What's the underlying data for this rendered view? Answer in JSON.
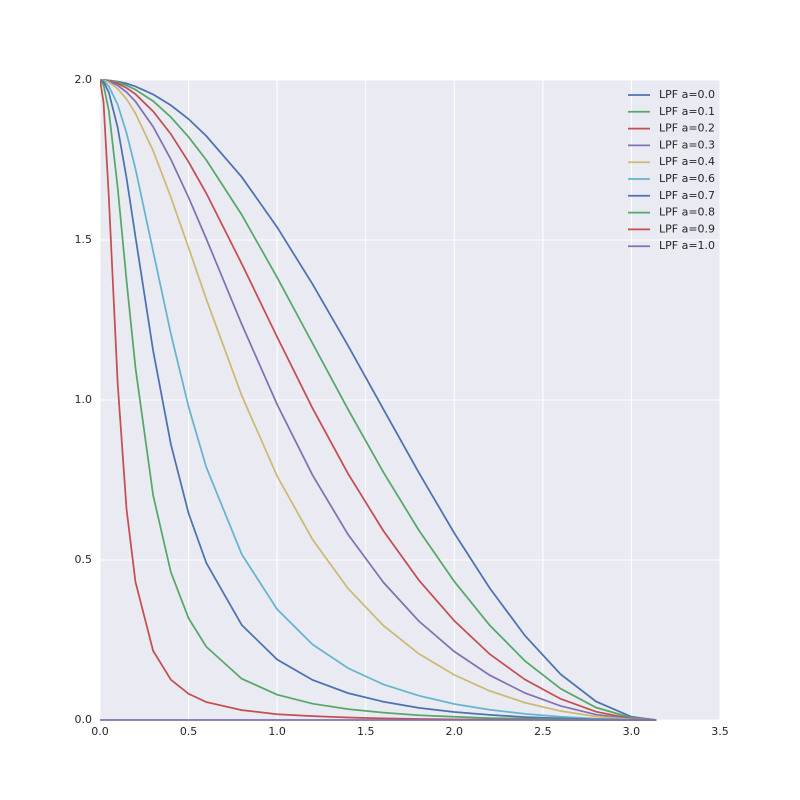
{
  "chart_data": {
    "type": "line",
    "x": [
      0,
      0.02,
      0.05,
      0.1,
      0.15,
      0.2,
      0.3,
      0.4,
      0.5,
      0.6,
      0.8,
      1.0,
      1.2,
      1.4,
      1.6,
      1.8,
      2.0,
      2.2,
      2.4,
      2.6,
      2.8,
      3.0,
      3.14
    ],
    "series": [
      {
        "name": "LPF a=0.0",
        "color": "#4C72B0",
        "values": [
          2,
          2.0,
          1.999,
          1.995,
          1.989,
          1.98,
          1.955,
          1.921,
          1.878,
          1.825,
          1.697,
          1.54,
          1.362,
          1.17,
          0.971,
          0.773,
          0.584,
          0.412,
          0.263,
          0.143,
          0.058,
          0.01,
          0
        ]
      },
      {
        "name": "LPF a=0.1",
        "color": "#55A868",
        "values": [
          2,
          2.0,
          1.998,
          1.993,
          1.983,
          1.97,
          1.934,
          1.884,
          1.822,
          1.75,
          1.579,
          1.383,
          1.177,
          0.971,
          0.774,
          0.593,
          0.433,
          0.296,
          0.184,
          0.098,
          0.039,
          0.007,
          0
        ]
      },
      {
        "name": "LPF a=0.2",
        "color": "#C44E52",
        "values": [
          2,
          2.0,
          1.997,
          1.989,
          1.975,
          1.956,
          1.902,
          1.831,
          1.744,
          1.646,
          1.426,
          1.197,
          0.974,
          0.77,
          0.591,
          0.437,
          0.31,
          0.206,
          0.126,
          0.066,
          0.026,
          0.004,
          0
        ]
      },
      {
        "name": "LPF a=0.3",
        "color": "#8172B2",
        "values": [
          2,
          1.999,
          1.996,
          1.983,
          1.962,
          1.933,
          1.854,
          1.752,
          1.633,
          1.504,
          1.237,
          0.986,
          0.765,
          0.58,
          0.43,
          0.309,
          0.214,
          0.14,
          0.084,
          0.044,
          0.017,
          0.003,
          0
        ]
      },
      {
        "name": "LPF a=0.4",
        "color": "#CCB974",
        "values": [
          2,
          1.999,
          1.993,
          1.973,
          1.94,
          1.896,
          1.779,
          1.634,
          1.476,
          1.315,
          1.014,
          0.762,
          0.564,
          0.411,
          0.295,
          0.207,
          0.141,
          0.091,
          0.054,
          0.028,
          0.011,
          0.002,
          0
        ]
      },
      {
        "name": "LPF a=0.6",
        "color": "#64B5CD",
        "values": [
          2,
          1.997,
          1.98,
          1.923,
          1.834,
          1.723,
          1.465,
          1.207,
          0.979,
          0.79,
          0.518,
          0.346,
          0.236,
          0.162,
          0.111,
          0.076,
          0.05,
          0.032,
          0.019,
          0.01,
          0.004,
          0.001,
          0
        ]
      },
      {
        "name": "LPF a=0.7",
        "color": "#4C72B0",
        "values": [
          2,
          1.994,
          1.961,
          1.851,
          1.693,
          1.511,
          1.154,
          0.862,
          0.646,
          0.491,
          0.297,
          0.189,
          0.125,
          0.084,
          0.057,
          0.038,
          0.025,
          0.016,
          0.009,
          0.005,
          0.002,
          0.0,
          0
        ]
      },
      {
        "name": "LPF a=0.8",
        "color": "#55A868",
        "values": [
          2,
          1.984,
          1.904,
          1.663,
          1.372,
          1.102,
          0.702,
          0.462,
          0.318,
          0.229,
          0.129,
          0.079,
          0.051,
          0.034,
          0.023,
          0.015,
          0.01,
          0.006,
          0.004,
          0.002,
          0.001,
          0.0,
          0
        ]
      },
      {
        "name": "LPF a=0.9",
        "color": "#C44E52",
        "values": [
          2,
          1.93,
          1.632,
          1.05,
          0.658,
          0.432,
          0.216,
          0.126,
          0.082,
          0.056,
          0.031,
          0.018,
          0.012,
          0.008,
          0.005,
          0.003,
          0.002,
          0.001,
          0.001,
          0.0,
          0,
          0,
          0
        ]
      },
      {
        "name": "LPF a=1.0",
        "color": "#8172B2",
        "values": [
          0,
          0,
          0,
          0,
          0,
          0,
          0,
          0,
          0,
          0,
          0,
          0,
          0,
          0,
          0,
          0,
          0,
          0,
          0,
          0,
          0,
          0,
          0
        ]
      }
    ],
    "xlim": [
      0,
      3.5
    ],
    "xticks": [
      {
        "value": 0,
        "label": "0.0"
      },
      {
        "value": 0.5,
        "label": "0.5"
      },
      {
        "value": 1,
        "label": "1.0"
      },
      {
        "value": 1.5,
        "label": "1.5"
      },
      {
        "value": 2,
        "label": "2.0"
      },
      {
        "value": 2.5,
        "label": "2.5"
      },
      {
        "value": 3,
        "label": "3.0"
      },
      {
        "value": 3.5,
        "label": "3.5"
      }
    ],
    "ylim": [
      0,
      2
    ],
    "yticks": [
      {
        "value": 0,
        "label": "0.0"
      },
      {
        "value": 0.5,
        "label": "0.5"
      },
      {
        "value": 1,
        "label": "1.0"
      },
      {
        "value": 1.5,
        "label": "1.5"
      },
      {
        "value": 2,
        "label": "2.0"
      }
    ],
    "grid": true,
    "legend": "upper right"
  }
}
